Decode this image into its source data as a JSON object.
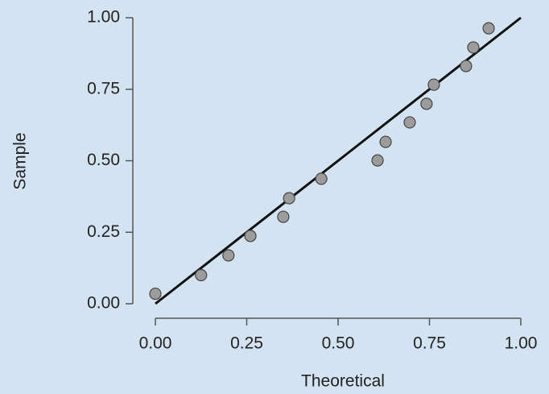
{
  "chart_data": {
    "type": "scatter",
    "x_label": "Theoretical",
    "y_label": "Sample",
    "x": [
      0.0,
      0.125,
      0.2,
      0.26,
      0.35,
      0.366,
      0.454,
      0.608,
      0.63,
      0.696,
      0.742,
      0.762,
      0.85,
      0.87,
      0.912
    ],
    "y": [
      0.035,
      0.1,
      0.169,
      0.237,
      0.304,
      0.369,
      0.437,
      0.501,
      0.566,
      0.634,
      0.699,
      0.766,
      0.831,
      0.896,
      0.963
    ],
    "color": "#9c9c9c",
    "reference_line": {
      "x": [
        0,
        1
      ],
      "y": [
        0,
        1
      ],
      "color": "#111111"
    },
    "xlim": [
      0,
      1
    ],
    "ylim": [
      0,
      1
    ],
    "xticks": [
      {
        "value": 0,
        "label": "0.00"
      },
      {
        "value": 0.25,
        "label": "0.25"
      },
      {
        "value": 0.5,
        "label": "0.50"
      },
      {
        "value": 0.75,
        "label": "0.75"
      },
      {
        "value": 1,
        "label": "1.00"
      }
    ],
    "yticks": [
      {
        "value": 0,
        "label": "0.00"
      },
      {
        "value": 0.25,
        "label": "0.25"
      },
      {
        "value": 0.5,
        "label": "0.50"
      },
      {
        "value": 0.75,
        "label": "0.75"
      },
      {
        "value": 1,
        "label": "1.00"
      }
    ],
    "grid": false
  }
}
